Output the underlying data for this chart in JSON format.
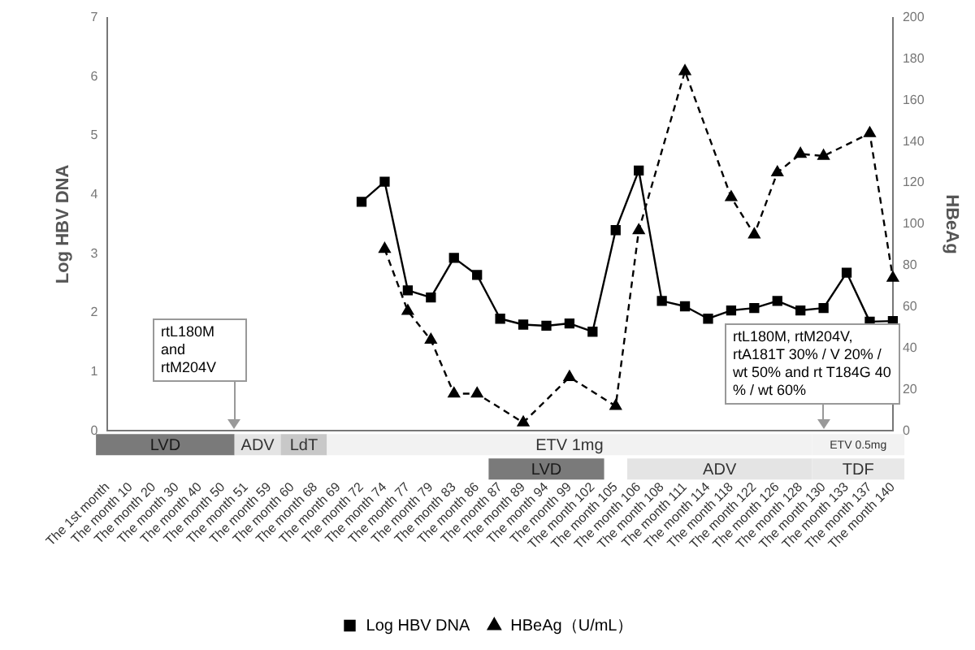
{
  "chart_data": {
    "type": "line",
    "categories": [
      "The 1st month",
      "The month 10",
      "The month 20",
      "The month 30",
      "The month 40",
      "The month 50",
      "The month 51",
      "The month 59",
      "The month 60",
      "The month 68",
      "The month 69",
      "The month 72",
      "The month 74",
      "The month 77",
      "The month 79",
      "The month 83",
      "The month 86",
      "The month 87",
      "The month 89",
      "The month 94",
      "The month 99",
      "The month 102",
      "The month 105",
      "The month 106",
      "The month 108",
      "The month 111",
      "The month 114",
      "The month 118",
      "The month 122",
      "The month 126",
      "The month 128",
      "The month 130",
      "The month 133",
      "The month 137",
      "The month 140"
    ],
    "series": [
      {
        "name": "Log HBV DNA",
        "color": "#000000",
        "marker": "square",
        "line_style": "solid",
        "values": [
          null,
          null,
          null,
          null,
          null,
          null,
          null,
          null,
          null,
          null,
          null,
          3.88,
          4.22,
          2.38,
          2.26,
          2.93,
          2.64,
          1.9,
          1.8,
          1.78,
          1.82,
          1.68,
          3.4,
          4.41,
          2.2,
          2.11,
          1.9,
          2.04,
          2.08,
          2.2,
          2.04,
          2.08,
          2.68,
          1.85,
          1.86
        ]
      },
      {
        "name": "HBeAg（U/mL）",
        "color": "#000000",
        "marker": "triangle",
        "line_style": "dashed",
        "axis": "y2",
        "values": [
          null,
          null,
          null,
          null,
          null,
          null,
          null,
          null,
          null,
          null,
          null,
          null,
          88,
          58,
          44,
          18,
          18,
          null,
          4,
          null,
          26,
          null,
          12,
          97,
          null,
          174,
          null,
          113,
          95,
          125,
          134,
          133,
          null,
          144,
          74
        ]
      }
    ],
    "ylabel": "Log HBV DNA",
    "y2label": "HBeAg",
    "ylim": [
      0,
      7
    ],
    "yticks": [
      0,
      1,
      2,
      3,
      4,
      5,
      6,
      7
    ],
    "y2lim": [
      0,
      200
    ],
    "y2ticks": [
      0,
      20,
      40,
      60,
      80,
      100,
      120,
      140,
      160,
      180,
      200
    ],
    "grid": false,
    "legend": "bottom",
    "annotations": [
      "LVD",
      "ADV",
      "LdT",
      "ETV 1mg",
      "LVD",
      "ADV",
      "ETV 0.5mg",
      "TDF",
      "rtL180M and rtM204V",
      "rtL180M, rtM204V, rtA181T 30% / V 20% / wt 50% and rt T184G 40 % / wt 60%"
    ]
  }
}
